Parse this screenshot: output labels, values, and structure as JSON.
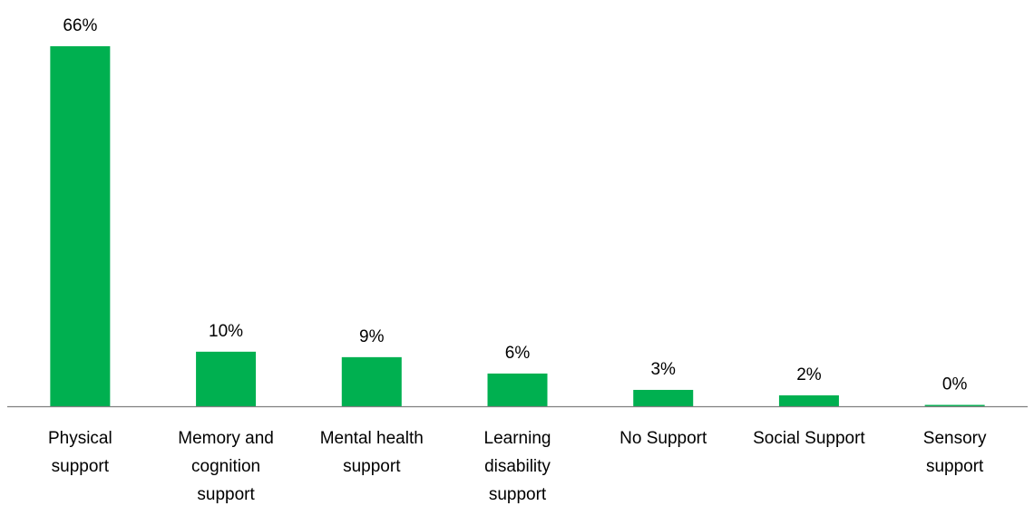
{
  "chart_data": {
    "type": "bar",
    "title": "",
    "xlabel": "",
    "ylabel": "",
    "categories": [
      [
        "Physical",
        "support"
      ],
      [
        "Memory and",
        "cognition",
        "support"
      ],
      [
        "Mental health",
        "support"
      ],
      [
        "Learning",
        "disability",
        "support"
      ],
      [
        "No Support"
      ],
      [
        "Social Support"
      ],
      [
        "Sensory",
        "support"
      ]
    ],
    "values": [
      66,
      10,
      9,
      6,
      3,
      2,
      0
    ],
    "value_labels": [
      "66%",
      "10%",
      "9%",
      "6%",
      "3%",
      "2%",
      "0%"
    ],
    "ylim": [
      0,
      66
    ],
    "grid": false,
    "legend": "none",
    "bar_color": "#00B050",
    "axis_color": "#808080"
  }
}
